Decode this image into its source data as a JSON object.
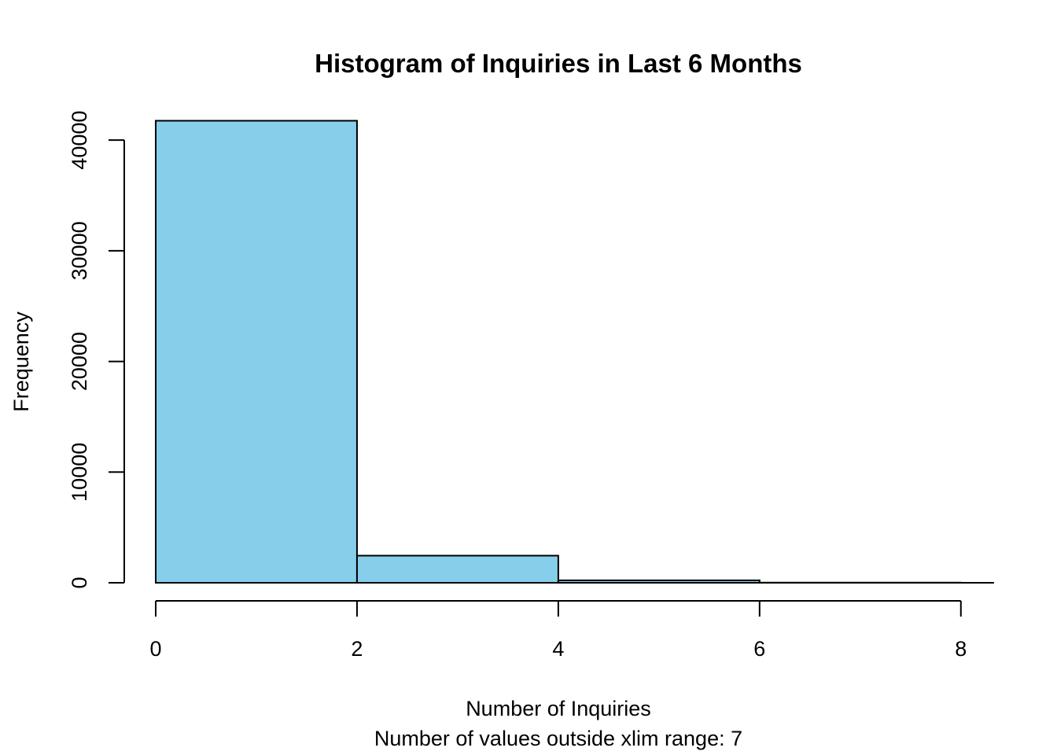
{
  "chart_data": {
    "type": "bar",
    "title": "Histogram of Inquiries in Last 6 Months",
    "xlabel": "Number of Inquiries",
    "subtitle": "Number of values outside xlim range: 7",
    "ylabel": "Frequency",
    "bins": [
      {
        "x0": 0,
        "x1": 2,
        "value": 41750
      },
      {
        "x0": 2,
        "x1": 4,
        "value": 2450
      },
      {
        "x0": 4,
        "x1": 6,
        "value": 220
      },
      {
        "x0": 6,
        "x1": 8,
        "value": 15
      }
    ],
    "xlim": [
      0,
      8.33
    ],
    "ylim": [
      0,
      42000
    ],
    "x_ticks": [
      0,
      2,
      4,
      6,
      8
    ],
    "x_tick_labels": [
      "0",
      "2",
      "4",
      "6",
      "8"
    ],
    "y_ticks": [
      0,
      10000,
      20000,
      30000,
      40000
    ],
    "y_tick_labels": [
      "0",
      "10000",
      "20000",
      "30000",
      "40000"
    ],
    "bar_color": "#87CEEB",
    "grid": false,
    "legend": "none"
  }
}
